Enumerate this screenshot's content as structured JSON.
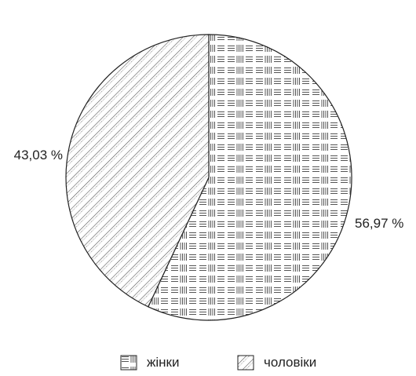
{
  "chart_data": {
    "type": "pie",
    "slices": [
      {
        "label": "жінки",
        "value": 56.97,
        "value_label": "56,97 %",
        "pattern": "cross-hatch-blocks"
      },
      {
        "label": "чоловіки",
        "value": 43.03,
        "value_label": "43,03 %",
        "pattern": "diagonal-stripes"
      }
    ],
    "start_angle": "12 o'clock, clockwise",
    "legend_position": "bottom",
    "colors": {
      "outline": "#222222",
      "pattern": "#555555",
      "background": "#ffffff"
    }
  }
}
